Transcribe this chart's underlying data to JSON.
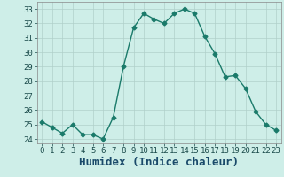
{
  "hours": [
    0,
    1,
    2,
    3,
    4,
    5,
    6,
    7,
    8,
    9,
    10,
    11,
    12,
    13,
    14,
    15,
    16,
    17,
    18,
    19,
    20,
    21,
    22,
    23
  ],
  "values": [
    25.2,
    24.8,
    24.4,
    25.0,
    24.3,
    24.3,
    24.0,
    25.5,
    29.0,
    31.7,
    32.7,
    32.3,
    32.0,
    32.7,
    33.0,
    32.7,
    31.1,
    29.9,
    28.3,
    28.4,
    27.5,
    25.9,
    25.0,
    24.6
  ],
  "line_color": "#1a7a6a",
  "marker": "D",
  "marker_size": 2.5,
  "bg_color": "#ceeee8",
  "grid_color": "#b0d0ca",
  "xlabel": "Humidex (Indice chaleur)",
  "xlabel_fontsize": 9,
  "xlim": [
    -0.5,
    23.5
  ],
  "ylim": [
    23.7,
    33.5
  ],
  "yticks": [
    24,
    25,
    26,
    27,
    28,
    29,
    30,
    31,
    32,
    33
  ],
  "xticks": [
    0,
    1,
    2,
    3,
    4,
    5,
    6,
    7,
    8,
    9,
    10,
    11,
    12,
    13,
    14,
    15,
    16,
    17,
    18,
    19,
    20,
    21,
    22,
    23
  ],
  "tick_fontsize": 6.5,
  "line_width": 1.0
}
